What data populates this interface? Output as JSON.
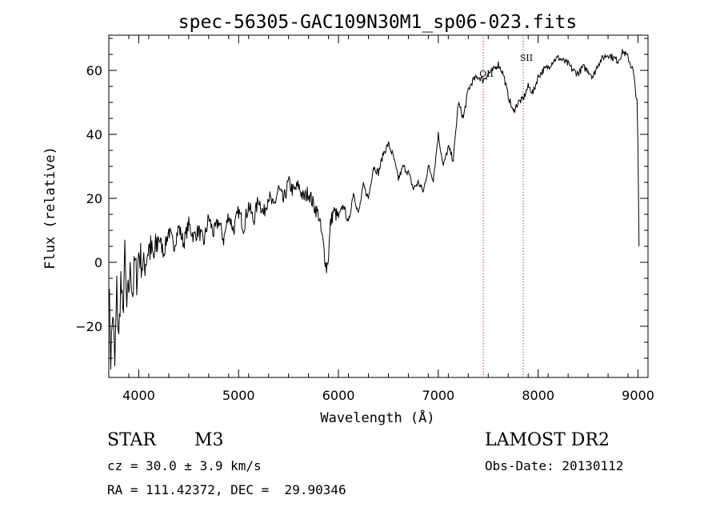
{
  "chart_data": {
    "type": "line",
    "title": "spec-56305-GAC109N30M1_sp06-023.fits",
    "xlabel": "Wavelength (Å)",
    "ylabel": "Flux (relative)",
    "xlim": [
      3700,
      9100
    ],
    "ylim": [
      -36,
      71
    ],
    "x_ticks": [
      4000,
      5000,
      6000,
      7000,
      8000,
      9000
    ],
    "y_ticks": [
      -20,
      0,
      20,
      40,
      60
    ],
    "grid": false,
    "line_color": "#000000",
    "series": [
      {
        "x": [
          3700,
          3720,
          3740,
          3760,
          3780,
          3800,
          3820,
          3840,
          3860,
          3880,
          3900,
          3920,
          3940,
          3960,
          3980,
          4000,
          4050,
          4100,
          4150,
          4200,
          4250,
          4300,
          4350,
          4400,
          4450,
          4500,
          4550,
          4600,
          4650,
          4700,
          4750,
          4800,
          4850,
          4900,
          4950,
          5000,
          5050,
          5100,
          5150,
          5200,
          5250,
          5300,
          5350,
          5400,
          5450,
          5500,
          5550,
          5600,
          5650,
          5700,
          5750,
          5800,
          5850,
          5880,
          5900,
          5920,
          5950,
          6000,
          6050,
          6100,
          6150,
          6200,
          6250,
          6300,
          6350,
          6400,
          6450,
          6500,
          6550,
          6600,
          6650,
          6700,
          6750,
          6800,
          6850,
          6900,
          6950,
          7000,
          7050,
          7100,
          7150,
          7200,
          7250,
          7300,
          7350,
          7400,
          7450,
          7500,
          7550,
          7600,
          7650,
          7700,
          7750,
          7800,
          7850,
          7900,
          7950,
          8000,
          8050,
          8100,
          8150,
          8200,
          8250,
          8300,
          8350,
          8400,
          8450,
          8500,
          8550,
          8600,
          8650,
          8700,
          8750,
          8800,
          8850,
          8900,
          8950,
          8990,
          9000,
          9010
        ],
        "y": [
          -5,
          -30,
          -15,
          -33,
          -8,
          -25,
          -5,
          -18,
          2,
          -15,
          -8,
          -2,
          -10,
          0,
          -5,
          3,
          -2,
          5,
          1,
          8,
          3,
          10,
          5,
          11,
          6,
          12,
          8,
          10,
          6,
          14,
          9,
          13,
          7,
          15,
          10,
          16,
          11,
          18,
          13,
          20,
          15,
          21,
          17,
          23,
          19,
          25,
          22,
          24,
          20,
          22,
          18,
          15,
          5,
          -2,
          2,
          12,
          16,
          14,
          18,
          12,
          22,
          15,
          24,
          20,
          30,
          28,
          34,
          37,
          33,
          26,
          30,
          28,
          23,
          25,
          22,
          30,
          26,
          40,
          30,
          36,
          32,
          50,
          45,
          54,
          57,
          58,
          57,
          59,
          60,
          62,
          59,
          52,
          47,
          50,
          51,
          55,
          53,
          58,
          60,
          61,
          63,
          64,
          63,
          62,
          60,
          59,
          61,
          60,
          58,
          62,
          64,
          65,
          64,
          63,
          66,
          64,
          60,
          50,
          35,
          5
        ]
      }
    ],
    "annotations": [
      {
        "label": "OII",
        "x": 7450,
        "y_label": 58
      },
      {
        "label": "SII",
        "x": 7850,
        "y_label": 63
      }
    ]
  },
  "info": {
    "object_type": "STAR",
    "subclass": "M3",
    "survey": "LAMOST DR2",
    "cz": "cz = 30.0 ± 3.9 km/s",
    "obs_date": "Obs-Date: 20130112",
    "coords": "RA = 111.42372, DEC =  29.90346"
  }
}
